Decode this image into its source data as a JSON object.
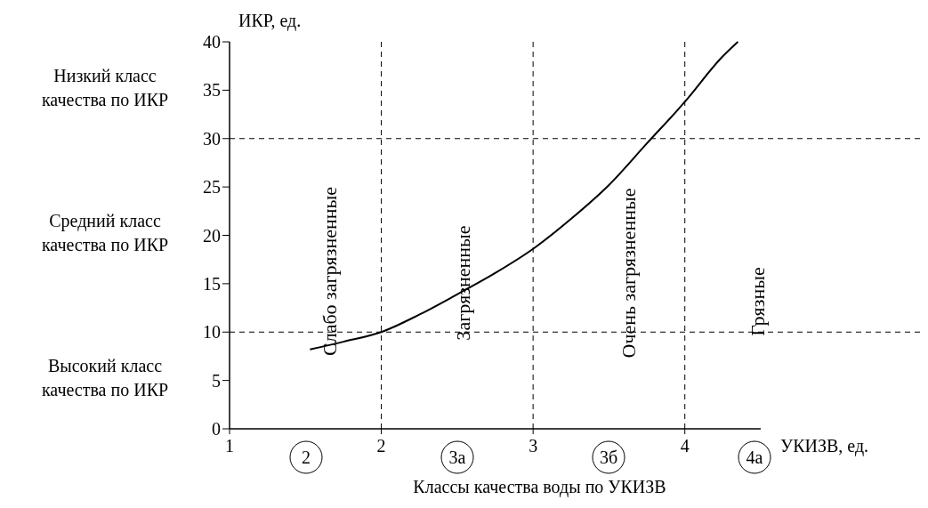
{
  "chart_data": {
    "type": "line",
    "xlabel": "УКИЗВ, ед.",
    "ylabel": "ИКР, ед.",
    "x2label": "Классы качества воды по УКИЗВ",
    "xlim": [
      1,
      4.5
    ],
    "xticks": [
      1,
      2,
      3,
      4
    ],
    "ylim": [
      0,
      40
    ],
    "yticks": [
      0,
      5,
      10,
      15,
      20,
      25,
      30,
      35,
      40
    ],
    "grid": false,
    "marker": "none",
    "line_style": "solid",
    "series": [
      {
        "color": "#000000",
        "x": [
          1.53,
          1.75,
          2,
          2.25,
          2.5,
          2.75,
          3,
          3.25,
          3.5,
          3.75,
          4,
          4.25,
          4.35
        ],
        "values": [
          8.2,
          9,
          10,
          11.8,
          13.9,
          16.1,
          18.6,
          21.7,
          25.2,
          29.5,
          33.8,
          38.5,
          40
        ]
      }
    ],
    "ref_lines": [
      {
        "axis": "x",
        "value": 2,
        "line_style": "dashed"
      },
      {
        "axis": "x",
        "value": 3,
        "line_style": "dashed"
      },
      {
        "axis": "x",
        "value": 4,
        "line_style": "dashed"
      },
      {
        "axis": "y",
        "value": 10,
        "line_style": "dashed"
      },
      {
        "axis": "y",
        "value": 30,
        "line_style": "dashed"
      }
    ],
    "annotations": [
      "Низкий класс качества по ИКР",
      "Средний класс качества по ИКР",
      "Высокий класс качества по ИКР",
      "Слабо загрязненные",
      "Загрязненные",
      "Очень загрязненные",
      "Грязные",
      "2",
      "3а",
      "3б",
      "4а"
    ]
  }
}
